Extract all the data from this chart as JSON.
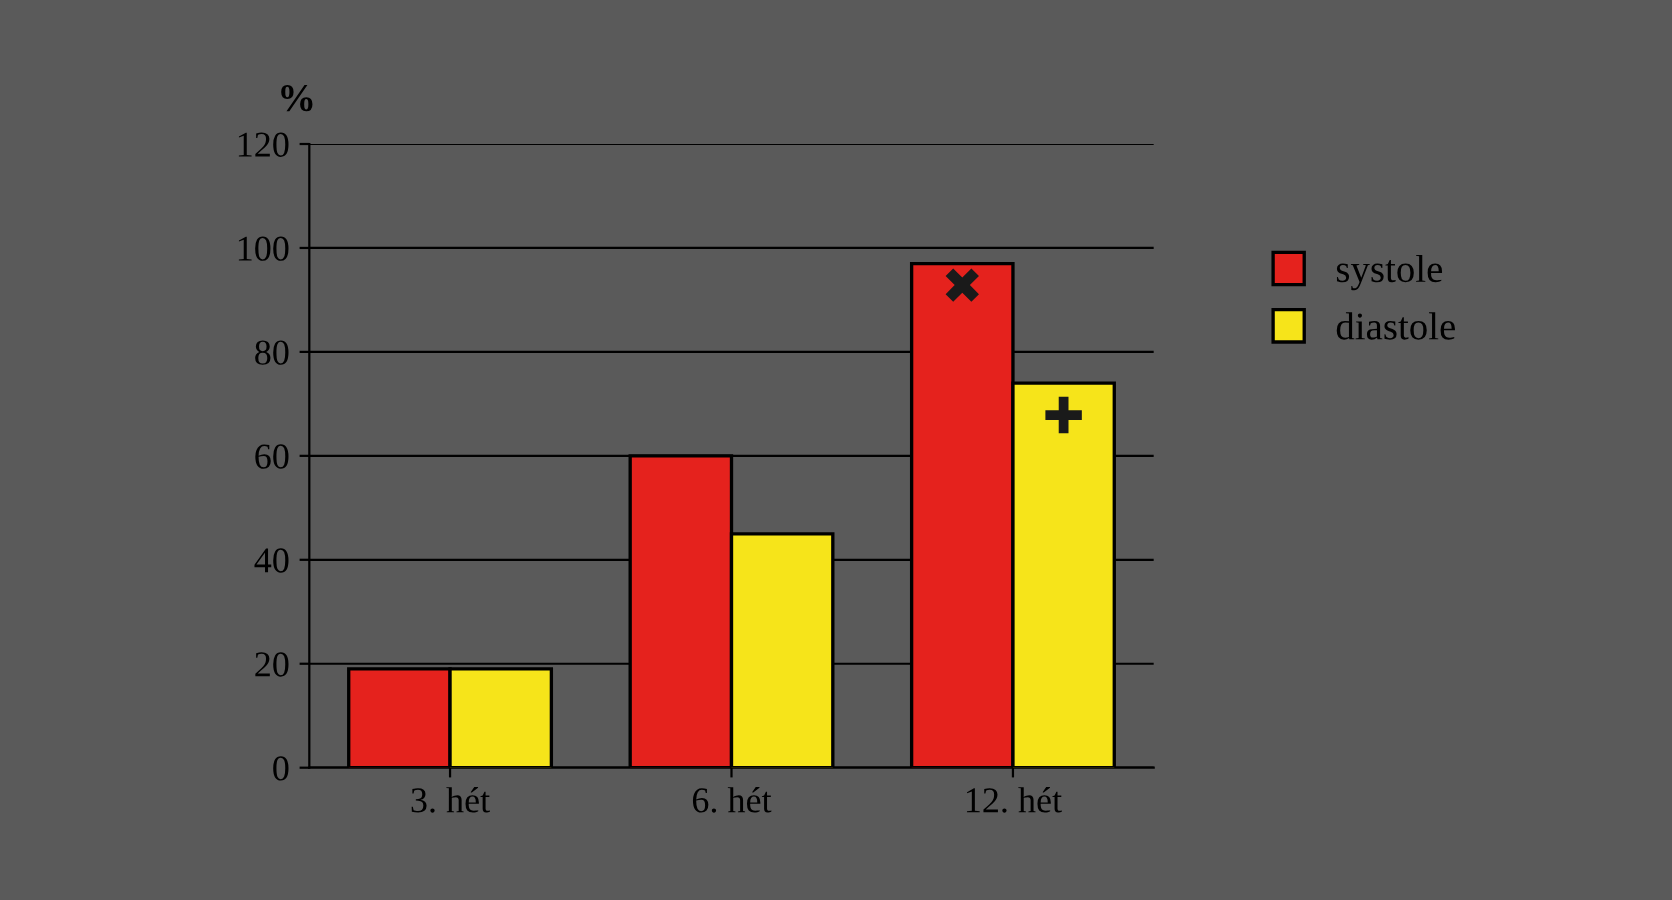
{
  "chart_data": {
    "type": "bar",
    "ylabel": "%",
    "categories": [
      "3. hét",
      "6. hét",
      "12. hét"
    ],
    "series": [
      {
        "name": "systole",
        "color": "#e5221d",
        "values": [
          19,
          60,
          97
        ]
      },
      {
        "name": "diastole",
        "color": "#f6e41a",
        "values": [
          19,
          45,
          74
        ]
      }
    ],
    "ylim": [
      0,
      120
    ],
    "yticks": [
      0,
      20,
      40,
      60,
      80,
      100,
      120
    ],
    "grid": "y",
    "legend": "right",
    "annotations": [
      {
        "text": "✖",
        "x": "12. hét",
        "y": 92
      },
      {
        "text": "✚",
        "x": "12. hét",
        "y": 67
      }
    ]
  }
}
